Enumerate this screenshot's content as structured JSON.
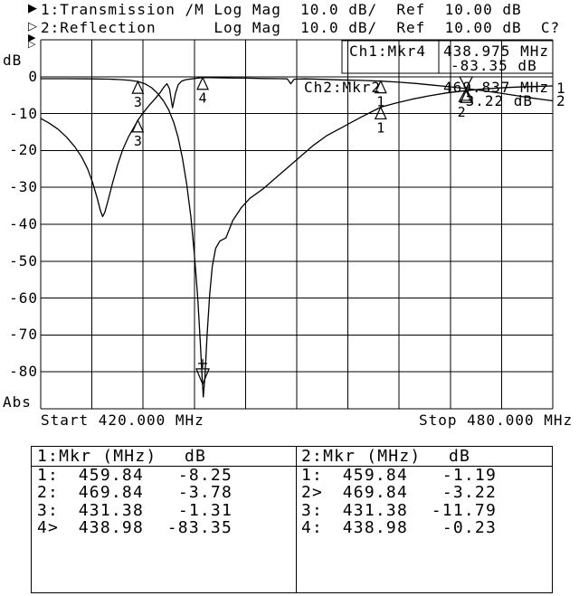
{
  "header": {
    "ch1": {
      "icon": "▶",
      "text": "1:Transmission /M Log Mag  10.0 dB/  Ref  10.00 dB"
    },
    "ch2": {
      "icon": "▷",
      "text": "2:Reflection      Log Mag  10.0 dB/  Ref  10.00 dB  C?"
    }
  },
  "ref_markers": {
    "ch1_icon": "▶",
    "ch2_icon": "▷"
  },
  "y_axis": {
    "unit_label": "dB",
    "format_label": "Abs",
    "ticks": [
      "0",
      "-10",
      "-20",
      "-30",
      "-40",
      "-50",
      "-60",
      "-70",
      "-80"
    ]
  },
  "x_axis": {
    "start_label": "Start 420.000 MHz",
    "stop_label": "Stop 480.000 MHz"
  },
  "readout": {
    "ch1_label": "Ch1:Mkr4",
    "ch1_freq": "438.975 MHz",
    "ch1_db": "-83.35 dB",
    "ch2_label": "Ch2:Mkr2",
    "ch2_freq": "469.837 MHz",
    "ch2_db": "-3.22 dB"
  },
  "trace_labels": {
    "t1": "1",
    "t2": "2"
  },
  "colors": {
    "ink": "#000000",
    "paper": "#ffffff"
  },
  "chart_data": {
    "type": "line",
    "title": "",
    "xlabel": "MHz",
    "ylabel": "dB",
    "x_range": [
      420,
      480
    ],
    "x_divisions": 10,
    "y_range": [
      -90,
      10
    ],
    "y_per_div": 10,
    "ref_level_db": 10,
    "grid": true,
    "series": [
      {
        "name": "1: Transmission /M Log Mag",
        "points": [
          [
            420,
            -0.55
          ],
          [
            423,
            -0.55
          ],
          [
            426,
            -0.6
          ],
          [
            428,
            -0.65
          ],
          [
            429.5,
            -0.8
          ],
          [
            430.5,
            -1.0
          ],
          [
            431.38,
            -1.31
          ],
          [
            432.2,
            -1.9
          ],
          [
            433,
            -3.0
          ],
          [
            433.7,
            -4.5
          ],
          [
            434.4,
            -6.6
          ],
          [
            435,
            -9
          ],
          [
            435.6,
            -12.5
          ],
          [
            436.1,
            -16.5
          ],
          [
            436.6,
            -22
          ],
          [
            437.1,
            -29
          ],
          [
            437.6,
            -38
          ],
          [
            438,
            -48
          ],
          [
            438.4,
            -60
          ],
          [
            438.7,
            -72
          ],
          [
            438.9,
            -81
          ],
          [
            439.05,
            -86.8
          ],
          [
            439.25,
            -81
          ],
          [
            439.5,
            -70
          ],
          [
            439.8,
            -59
          ],
          [
            440.1,
            -51.5
          ],
          [
            440.5,
            -46.5
          ],
          [
            441,
            -44.5
          ],
          [
            441.7,
            -43.7
          ],
          [
            442.5,
            -39
          ],
          [
            443.5,
            -35.5
          ],
          [
            444.5,
            -33
          ],
          [
            446,
            -30.5
          ],
          [
            447.5,
            -27.5
          ],
          [
            449,
            -24.5
          ],
          [
            450.5,
            -21.5
          ],
          [
            452,
            -18.5
          ],
          [
            453.5,
            -16
          ],
          [
            455.5,
            -13.5
          ],
          [
            457.5,
            -11
          ],
          [
            459.84,
            -8.25
          ],
          [
            461.5,
            -7.2
          ],
          [
            463.5,
            -6.1
          ],
          [
            465.5,
            -5.2
          ],
          [
            467.5,
            -4.4
          ],
          [
            469.84,
            -3.78
          ],
          [
            472,
            -3.3
          ],
          [
            474.5,
            -2.95
          ],
          [
            477,
            -2.7
          ],
          [
            480,
            -2.5
          ]
        ],
        "markers": [
          {
            "n": "1",
            "f": 459.84,
            "db": -8.25,
            "style": "up",
            "show_label": true
          },
          {
            "n": "2",
            "f": 469.84,
            "db": -3.78,
            "style": "up",
            "show_label": false
          },
          {
            "n": "3",
            "f": 431.38,
            "db": -1.31,
            "style": "up",
            "show_label": true
          },
          {
            "n": "4",
            "f": 438.98,
            "db": -83.35,
            "style": "active-notch",
            "show_label": false
          }
        ]
      },
      {
        "name": "2: Reflection Log Mag",
        "points": [
          [
            420,
            -11.3
          ],
          [
            421,
            -12.6
          ],
          [
            422,
            -14.2
          ],
          [
            423,
            -16.3
          ],
          [
            424,
            -19
          ],
          [
            424.8,
            -21.8
          ],
          [
            425.5,
            -25
          ],
          [
            426.1,
            -28.8
          ],
          [
            426.6,
            -32.8
          ],
          [
            427,
            -36.3
          ],
          [
            427.25,
            -37.9
          ],
          [
            427.5,
            -36.8
          ],
          [
            427.9,
            -33.5
          ],
          [
            428.4,
            -29
          ],
          [
            429,
            -24
          ],
          [
            429.6,
            -19.8
          ],
          [
            430.3,
            -16.2
          ],
          [
            431,
            -13.4
          ],
          [
            431.38,
            -11.79
          ],
          [
            432,
            -9.8
          ],
          [
            432.7,
            -7.8
          ],
          [
            433.4,
            -6.0
          ],
          [
            434,
            -4.3
          ],
          [
            434.5,
            -2.6
          ],
          [
            434.8,
            -1.9
          ],
          [
            435.1,
            -3.3
          ],
          [
            435.45,
            -8.4
          ],
          [
            435.8,
            -4.5
          ],
          [
            436.1,
            -2.2
          ],
          [
            436.5,
            -1.2
          ],
          [
            437,
            -0.8
          ],
          [
            438,
            -0.5
          ],
          [
            438.98,
            -0.23
          ],
          [
            440.5,
            -0.3
          ],
          [
            442,
            -0.35
          ],
          [
            444,
            -0.4
          ],
          [
            446,
            -0.5
          ],
          [
            448,
            -0.55
          ],
          [
            448.9,
            -0.6
          ],
          [
            449.3,
            -1.9
          ],
          [
            449.7,
            -0.65
          ],
          [
            451,
            -0.6
          ],
          [
            453,
            -0.7
          ],
          [
            455,
            -0.85
          ],
          [
            457.5,
            -1.0
          ],
          [
            459.84,
            -1.19
          ],
          [
            462,
            -1.5
          ],
          [
            464,
            -1.85
          ],
          [
            466,
            -2.3
          ],
          [
            468,
            -2.75
          ],
          [
            469.84,
            -3.22
          ],
          [
            471.5,
            -3.7
          ],
          [
            473.5,
            -4.35
          ],
          [
            475.5,
            -5.05
          ],
          [
            477.5,
            -5.75
          ],
          [
            480,
            -6.55
          ]
        ],
        "markers": [
          {
            "n": "1",
            "f": 459.84,
            "db": -1.19,
            "style": "up",
            "show_label": true
          },
          {
            "n": "2",
            "f": 469.84,
            "db": -3.22,
            "style": "hourglass",
            "show_label": true
          },
          {
            "n": "3",
            "f": 431.38,
            "db": -11.79,
            "style": "up",
            "show_label": true
          },
          {
            "n": "4",
            "f": 438.98,
            "db": -0.23,
            "style": "up",
            "show_label": true
          }
        ]
      }
    ]
  },
  "marker_table": {
    "left": {
      "header_col1": "1:Mkr (MHz)",
      "header_col2": "dB",
      "rows": [
        {
          "id": "1:",
          "mhz": "459.84",
          "db": "-8.25"
        },
        {
          "id": "2:",
          "mhz": "469.84",
          "db": "-3.78"
        },
        {
          "id": "3:",
          "mhz": "431.38",
          "db": "-1.31"
        },
        {
          "id": "4>",
          "mhz": "438.98",
          "db": "-83.35"
        }
      ]
    },
    "right": {
      "header_col1": "2:Mkr (MHz)",
      "header_col2": "dB",
      "rows": [
        {
          "id": "1:",
          "mhz": "459.84",
          "db": "-1.19"
        },
        {
          "id": "2>",
          "mhz": "469.84",
          "db": "-3.22"
        },
        {
          "id": "3:",
          "mhz": "431.38",
          "db": "-11.79"
        },
        {
          "id": "4:",
          "mhz": "438.98",
          "db": "-0.23"
        }
      ]
    }
  }
}
